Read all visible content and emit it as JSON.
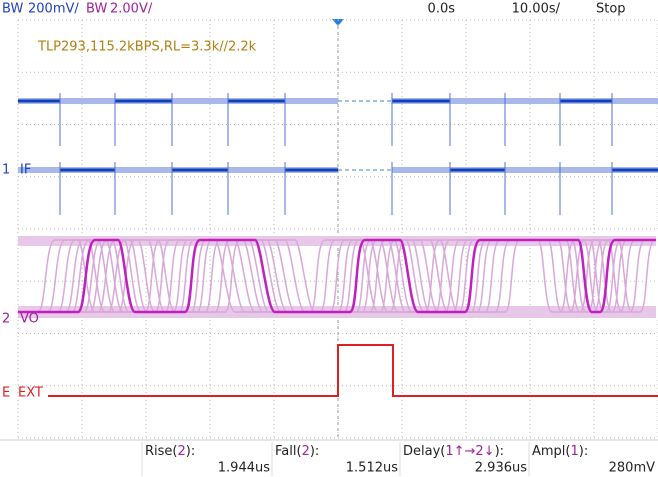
{
  "top_bar": {
    "ch1_bw": "BW",
    "ch1_scale": "200mV/",
    "ch2_bw": "BW",
    "ch2_scale": "2.00V/",
    "time_offset": "0.0s",
    "time_scale": "10.00s/",
    "run_state": "Stop"
  },
  "annotation": "TLP293,115.2kBPS,RL=3.3k//2.2k",
  "channels": [
    {
      "number": "1",
      "label": "IF"
    },
    {
      "number": "2",
      "label": "VO"
    },
    {
      "number": "E",
      "label": "EXT"
    }
  ],
  "measurements": [
    {
      "name": "Rise",
      "source": "2",
      "value": "1.944us"
    },
    {
      "name": "Fall",
      "source": "2",
      "value": "1.512us"
    },
    {
      "name": "Delay",
      "source": "1↑→2↓",
      "value": "2.936us"
    },
    {
      "name": "Ampl",
      "source": "1",
      "value": "280mV"
    }
  ]
}
